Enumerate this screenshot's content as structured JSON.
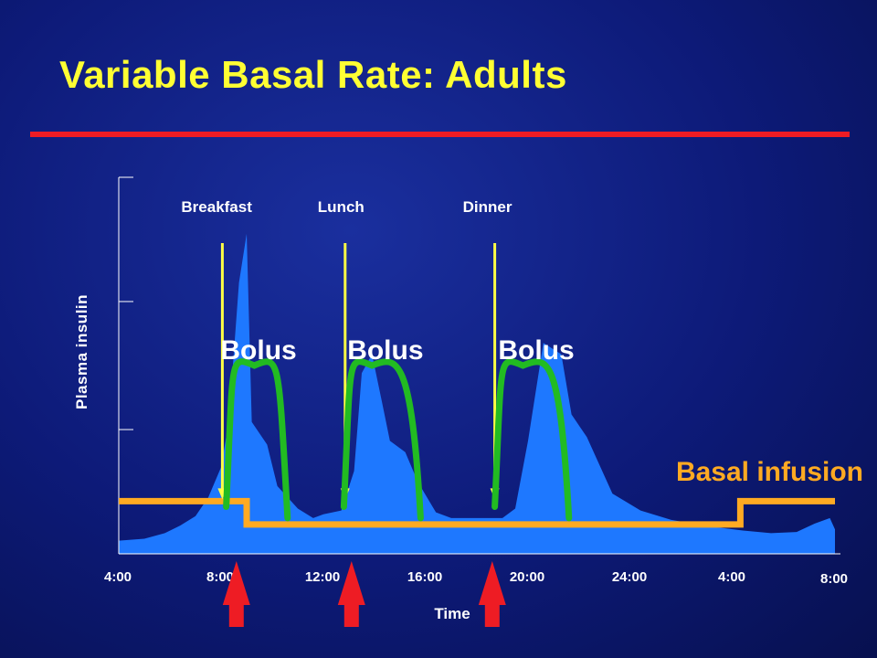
{
  "title": "Variable Basal Rate: Adults",
  "colors": {
    "insulin_fill": "#1e78ff",
    "bolus_curve": "#22bb22",
    "basal_line": "#ffaa22",
    "meal_arrow": "#ffff44",
    "bolus_arrow": "#ee1c24",
    "title_text": "#ffff33",
    "label_text": "#ffffff",
    "basal_label_text": "#ffaa22"
  },
  "chart_data": {
    "type": "area",
    "title": "Variable Basal Rate: Adults",
    "xlabel": "Time",
    "ylabel": "Plasma insulin",
    "x_unit": "hours elapsed from the first 4:00",
    "x_tick_labels": [
      "4:00",
      "8:00",
      "12:00",
      "16:00",
      "20:00",
      "24:00",
      "4:00",
      "8:00"
    ],
    "x_tick_positions": [
      0,
      4,
      8,
      12,
      16,
      20,
      24,
      28
    ],
    "xlim": [
      0,
      28
    ],
    "ylim": [
      0,
      10
    ],
    "y_tick_values": [
      0,
      3.3,
      6.7,
      10
    ],
    "y_tick_labels_shown": false,
    "grid": false,
    "series": [
      {
        "name": "Plasma insulin",
        "kind": "area",
        "points": [
          [
            0,
            0.35
          ],
          [
            1,
            0.4
          ],
          [
            1.8,
            0.55
          ],
          [
            2.4,
            0.75
          ],
          [
            3,
            1.0
          ],
          [
            3.5,
            1.5
          ],
          [
            4,
            2.3
          ],
          [
            4.3,
            3.5
          ],
          [
            4.7,
            7.2
          ],
          [
            5,
            8.5
          ],
          [
            5.2,
            3.5
          ],
          [
            5.8,
            2.9
          ],
          [
            6.2,
            1.8
          ],
          [
            7,
            1.2
          ],
          [
            7.6,
            0.95
          ],
          [
            8,
            1.05
          ],
          [
            8.7,
            1.15
          ],
          [
            9.2,
            2.2
          ],
          [
            9.5,
            4.8
          ],
          [
            9.9,
            5.3
          ],
          [
            10.3,
            4.0
          ],
          [
            10.6,
            3.0
          ],
          [
            11.2,
            2.7
          ],
          [
            11.7,
            1.9
          ],
          [
            12.4,
            1.1
          ],
          [
            13,
            0.95
          ],
          [
            15,
            0.95
          ],
          [
            15.5,
            1.2
          ],
          [
            16,
            3.0
          ],
          [
            16.6,
            5.6
          ],
          [
            17.3,
            5.3
          ],
          [
            17.7,
            3.7
          ],
          [
            18.3,
            3.1
          ],
          [
            19.3,
            1.6
          ],
          [
            20.4,
            1.15
          ],
          [
            21.6,
            0.9
          ],
          [
            23.2,
            0.72
          ],
          [
            24.4,
            0.62
          ],
          [
            25.5,
            0.55
          ],
          [
            26.5,
            0.58
          ],
          [
            27.2,
            0.8
          ],
          [
            27.8,
            0.95
          ],
          [
            28,
            0.65
          ],
          [
            28,
            0
          ]
        ]
      },
      {
        "name": "Basal infusion",
        "kind": "step-line",
        "points": [
          [
            0,
            1.4
          ],
          [
            5,
            1.4
          ],
          [
            5,
            0.78
          ],
          [
            24.3,
            0.78
          ],
          [
            24.3,
            1.4
          ],
          [
            28,
            1.4
          ]
        ]
      }
    ],
    "meals": [
      {
        "label": "Breakfast",
        "time": 4.05
      },
      {
        "label": "Lunch",
        "time": 8.85
      },
      {
        "label": "Dinner",
        "time": 14.7
      }
    ],
    "boluses": [
      {
        "label": "Bolus",
        "start": 4.2,
        "peak_time": 5.3,
        "peak_level": 5.0,
        "end": 6.6
      },
      {
        "label": "Bolus",
        "start": 8.8,
        "peak_time": 9.9,
        "peak_level": 5.0,
        "end": 11.8
      },
      {
        "label": "Bolus",
        "start": 14.7,
        "peak_time": 15.8,
        "peak_level": 5.0,
        "end": 17.6
      }
    ],
    "bolus_arrow_times": [
      4.6,
      9.1,
      14.6
    ],
    "annotations": [
      {
        "text": "Basal infusion",
        "anchor": "right",
        "target_series": "Basal infusion"
      }
    ]
  }
}
